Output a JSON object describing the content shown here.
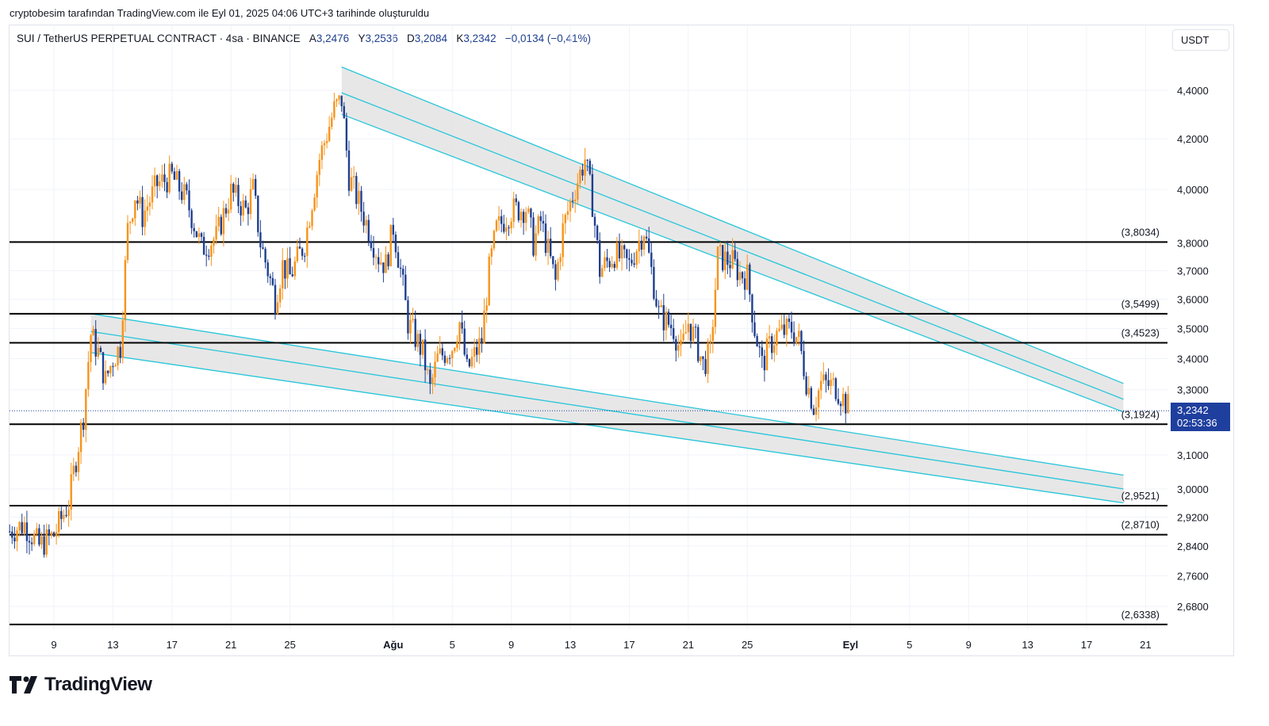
{
  "caption": "cryptobesim tarafından TradingView.com ile Eyl 01, 2025 04:06 UTC+3 tarihinde oluşturuldu",
  "legend": {
    "symbol": "SUI / TetherUS PERPETUAL CONTRACT · 4sa · BINANCE",
    "o_label": "A",
    "o_value": "3,2476",
    "h_label": "Y",
    "h_value": "3,2536",
    "l_label": "D",
    "l_value": "3,2084",
    "c_label": "K",
    "c_value": "3,2342",
    "change": "−0,0134 (−0,41%)"
  },
  "unit_button": "USDT",
  "last_price": {
    "value": "3,2342",
    "countdown": "02:53:36"
  },
  "brand": "TradingView",
  "colors": {
    "up": "#f7931a",
    "down": "#1f3f8f",
    "channel": "#26c6da",
    "channel_fill": "#e3e3e3",
    "level": "#000000",
    "last_tag": "#1f3f9e"
  },
  "chart_data": {
    "type": "candlestick",
    "timeframe": "4h",
    "y_scale": "log",
    "ylim": [
      2.56,
      4.56
    ],
    "y_ticks": [
      "4,4000",
      "4,2000",
      "4,0000",
      "3,8000",
      "3,7000",
      "3,6000",
      "3,5000",
      "3,4000",
      "3,3000",
      "3,1000",
      "3,0000",
      "2,9200",
      "2,8400",
      "2,7600",
      "2,6800"
    ],
    "y_tick_values": [
      4.4,
      4.2,
      4.0,
      3.8,
      3.7,
      3.6,
      3.5,
      3.4,
      3.3,
      3.1,
      3.0,
      2.92,
      2.84,
      2.76,
      2.68
    ],
    "x_ticks": [
      {
        "date": "2025-07-09",
        "label": "9"
      },
      {
        "date": "2025-07-13",
        "label": "13"
      },
      {
        "date": "2025-07-17",
        "label": "17"
      },
      {
        "date": "2025-07-21",
        "label": "21"
      },
      {
        "date": "2025-07-25",
        "label": "25"
      },
      {
        "date": "2025-08-01",
        "label": "Ağu"
      },
      {
        "date": "2025-08-05",
        "label": "5"
      },
      {
        "date": "2025-08-09",
        "label": "9"
      },
      {
        "date": "2025-08-13",
        "label": "13"
      },
      {
        "date": "2025-08-17",
        "label": "17"
      },
      {
        "date": "2025-08-21",
        "label": "21"
      },
      {
        "date": "2025-08-25",
        "label": "25"
      },
      {
        "date": "2025-09-01",
        "label": "Eyl"
      },
      {
        "date": "2025-09-05",
        "label": "5"
      },
      {
        "date": "2025-09-09",
        "label": "9"
      },
      {
        "date": "2025-09-13",
        "label": "13"
      },
      {
        "date": "2025-09-17",
        "label": "17"
      },
      {
        "date": "2025-09-21",
        "label": "21"
      }
    ],
    "price_path": [
      [
        "2025-07-06",
        2.88
      ],
      [
        "2025-07-07",
        2.9
      ],
      [
        "2025-07-08",
        2.84
      ],
      [
        "2025-07-09",
        2.87
      ],
      [
        "2025-07-10",
        2.96
      ],
      [
        "2025-07-11",
        3.22
      ],
      [
        "2025-07-11T12",
        3.48
      ],
      [
        "2025-07-12",
        3.42
      ],
      [
        "2025-07-12T12",
        3.33
      ],
      [
        "2025-07-13",
        3.4
      ],
      [
        "2025-07-13T12",
        3.44
      ],
      [
        "2025-07-14",
        3.85
      ],
      [
        "2025-07-14T12",
        3.98
      ],
      [
        "2025-07-15",
        3.9
      ],
      [
        "2025-07-16",
        4.02
      ],
      [
        "2025-07-17",
        4.05
      ],
      [
        "2025-07-18",
        3.96
      ],
      [
        "2025-07-19",
        3.78
      ],
      [
        "2025-07-20",
        3.82
      ],
      [
        "2025-07-21",
        3.99
      ],
      [
        "2025-07-22",
        3.92
      ],
      [
        "2025-07-22T12",
        4.0
      ],
      [
        "2025-07-23",
        3.8
      ],
      [
        "2025-07-24",
        3.6
      ],
      [
        "2025-07-24T12",
        3.72
      ],
      [
        "2025-07-25",
        3.68
      ],
      [
        "2025-07-26",
        3.8
      ],
      [
        "2025-07-27",
        4.12
      ],
      [
        "2025-07-28",
        4.32
      ],
      [
        "2025-07-28T12",
        4.36
      ],
      [
        "2025-07-29",
        4.05
      ],
      [
        "2025-07-30",
        3.9
      ],
      [
        "2025-07-31",
        3.75
      ],
      [
        "2025-07-31T12",
        3.72
      ],
      [
        "2025-08-01",
        3.86
      ],
      [
        "2025-08-01T12",
        3.7
      ],
      [
        "2025-08-02",
        3.52
      ],
      [
        "2025-08-03",
        3.42
      ],
      [
        "2025-08-03T12",
        3.3
      ],
      [
        "2025-08-04",
        3.4
      ],
      [
        "2025-08-05",
        3.44
      ],
      [
        "2025-08-05T12",
        3.52
      ],
      [
        "2025-08-06",
        3.36
      ],
      [
        "2025-08-07",
        3.46
      ],
      [
        "2025-08-07T12",
        3.7
      ],
      [
        "2025-08-08",
        3.85
      ],
      [
        "2025-08-09",
        3.92
      ],
      [
        "2025-08-10",
        3.93
      ],
      [
        "2025-08-10T12",
        3.8
      ],
      [
        "2025-08-11",
        3.88
      ],
      [
        "2025-08-12",
        3.66
      ],
      [
        "2025-08-12T12",
        3.85
      ],
      [
        "2025-08-13",
        3.95
      ],
      [
        "2025-08-14",
        4.12
      ],
      [
        "2025-08-14T12",
        3.95
      ],
      [
        "2025-08-15",
        3.7
      ],
      [
        "2025-08-16",
        3.76
      ],
      [
        "2025-08-17",
        3.72
      ],
      [
        "2025-08-18",
        3.85
      ],
      [
        "2025-08-18T12",
        3.7
      ],
      [
        "2025-08-19",
        3.55
      ],
      [
        "2025-08-20",
        3.5
      ],
      [
        "2025-08-20T12",
        3.42
      ],
      [
        "2025-08-21",
        3.52
      ],
      [
        "2025-08-21T12",
        3.46
      ],
      [
        "2025-08-22",
        3.38
      ],
      [
        "2025-08-22T12",
        3.42
      ],
      [
        "2025-08-23",
        3.75
      ],
      [
        "2025-08-24",
        3.73
      ],
      [
        "2025-08-24T12",
        3.69
      ],
      [
        "2025-08-25",
        3.68
      ],
      [
        "2025-08-25T12",
        3.5
      ],
      [
        "2025-08-26",
        3.38
      ],
      [
        "2025-08-26T12",
        3.44
      ],
      [
        "2025-08-27",
        3.48
      ],
      [
        "2025-08-28",
        3.5
      ],
      [
        "2025-08-28T12",
        3.46
      ],
      [
        "2025-08-29",
        3.33
      ],
      [
        "2025-08-29T12",
        3.25
      ],
      [
        "2025-08-30",
        3.32
      ],
      [
        "2025-08-31",
        3.31
      ],
      [
        "2025-09-01",
        3.2342
      ]
    ],
    "levels": [
      {
        "value": 3.8034,
        "label": "(3,8034)"
      },
      {
        "value": 3.5499,
        "label": "(3,5499)"
      },
      {
        "value": 3.4523,
        "label": "(3,4523)"
      },
      {
        "value": 3.1924,
        "label": "(3,1924)"
      },
      {
        "value": 2.9521,
        "label": "(2,9521)"
      },
      {
        "value": 2.871,
        "label": "(2,8710)"
      },
      {
        "value": 2.6338,
        "label": "(2,6338)"
      }
    ],
    "channels": [
      {
        "start_date": "2025-07-28T12",
        "end_date": "2025-09-19T12",
        "lines": [
          [
            4.5,
            3.32
          ],
          [
            4.39,
            3.27
          ],
          [
            4.3,
            3.23
          ]
        ]
      },
      {
        "start_date": "2025-07-11T12",
        "end_date": "2025-09-19T12",
        "lines": [
          [
            3.55,
            3.04
          ],
          [
            3.49,
            3.0
          ],
          [
            3.42,
            2.96
          ]
        ]
      }
    ],
    "last_value": 3.2342
  }
}
